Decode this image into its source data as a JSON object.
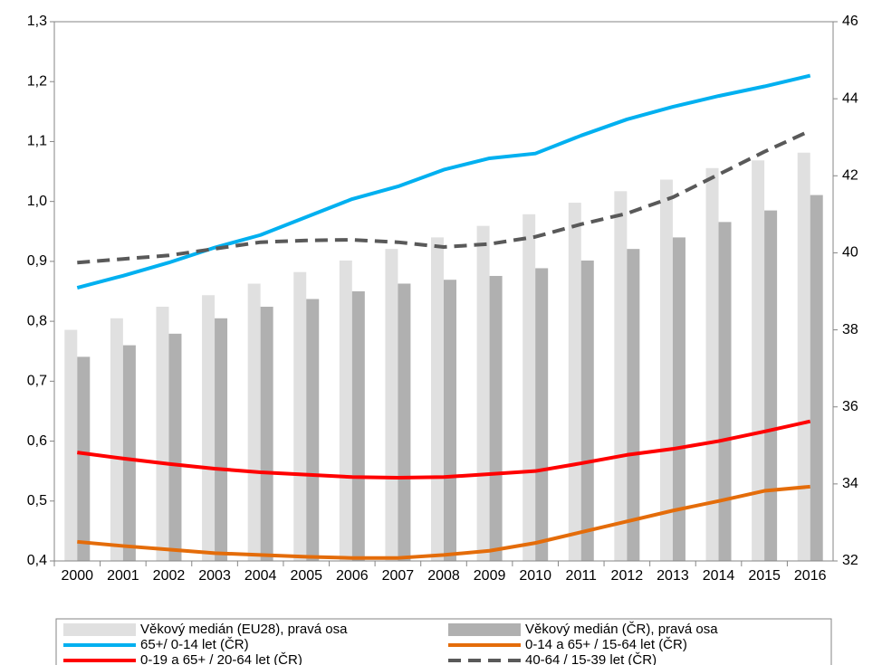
{
  "chart_data": {
    "type": "combo",
    "categories": [
      "2000",
      "2001",
      "2002",
      "2003",
      "2004",
      "2005",
      "2006",
      "2007",
      "2008",
      "2009",
      "2010",
      "2011",
      "2012",
      "2013",
      "2014",
      "2015",
      "2016"
    ],
    "ylim": [
      0.4,
      1.3
    ],
    "yticks": [
      {
        "value": 0.4,
        "label": "0,4"
      },
      {
        "value": 0.5,
        "label": "0,5"
      },
      {
        "value": 0.6,
        "label": "0,6"
      },
      {
        "value": 0.7,
        "label": "0,7"
      },
      {
        "value": 0.8,
        "label": "0,8"
      },
      {
        "value": 0.9,
        "label": "0,9"
      },
      {
        "value": 1.0,
        "label": "1,0"
      },
      {
        "value": 1.1,
        "label": "1,1"
      },
      {
        "value": 1.2,
        "label": "1,2"
      },
      {
        "value": 1.3,
        "label": "1,3"
      }
    ],
    "y2lim": [
      32,
      46
    ],
    "y2ticks": [
      32,
      34,
      36,
      38,
      40,
      42,
      44,
      46
    ],
    "series": [
      {
        "name": "Věkový medián (EU28), pravá osa",
        "type": "bar",
        "axis": "y2",
        "color": "#e0e0e0",
        "values": [
          38.0,
          38.3,
          38.6,
          38.9,
          39.2,
          39.5,
          39.8,
          40.1,
          40.4,
          40.7,
          41.0,
          41.3,
          41.6,
          41.9,
          42.2,
          42.4,
          42.6
        ]
      },
      {
        "name": "Věkový medián (ČR), pravá osa",
        "type": "bar",
        "axis": "y2",
        "color": "#b0b0b0",
        "values": [
          37.3,
          37.6,
          37.9,
          38.3,
          38.6,
          38.8,
          39.0,
          39.2,
          39.3,
          39.4,
          39.6,
          39.8,
          40.1,
          40.4,
          40.8,
          41.1,
          41.5
        ]
      },
      {
        "name": "65+/ 0-14 let (ČR)",
        "type": "line",
        "color": "#00b0f0",
        "values": [
          0.856,
          0.876,
          0.898,
          0.923,
          0.944,
          0.974,
          1.004,
          1.025,
          1.053,
          1.072,
          1.08,
          1.11,
          1.137,
          1.158,
          1.176,
          1.192,
          1.21
        ]
      },
      {
        "name": "0-14 a 65+ / 15-64 let (ČR)",
        "type": "line",
        "color": "#e46c0a",
        "values": [
          0.432,
          0.425,
          0.419,
          0.413,
          0.41,
          0.407,
          0.405,
          0.405,
          0.41,
          0.417,
          0.43,
          0.448,
          0.466,
          0.484,
          0.5,
          0.517,
          0.524
        ]
      },
      {
        "name": "0-19 a 65+ / 20-64 let (ČR)",
        "type": "line",
        "color": "#ff0000",
        "values": [
          0.581,
          0.571,
          0.562,
          0.554,
          0.548,
          0.544,
          0.54,
          0.539,
          0.54,
          0.545,
          0.55,
          0.563,
          0.577,
          0.587,
          0.6,
          0.616,
          0.633
        ]
      },
      {
        "name": "40-64 / 15-39 let (ČR)",
        "type": "line",
        "color": "#595959",
        "dashed": true,
        "values": [
          0.898,
          0.904,
          0.91,
          0.921,
          0.932,
          0.935,
          0.936,
          0.932,
          0.924,
          0.929,
          0.941,
          0.962,
          0.98,
          1.007,
          1.045,
          1.083,
          1.118
        ]
      }
    ]
  }
}
